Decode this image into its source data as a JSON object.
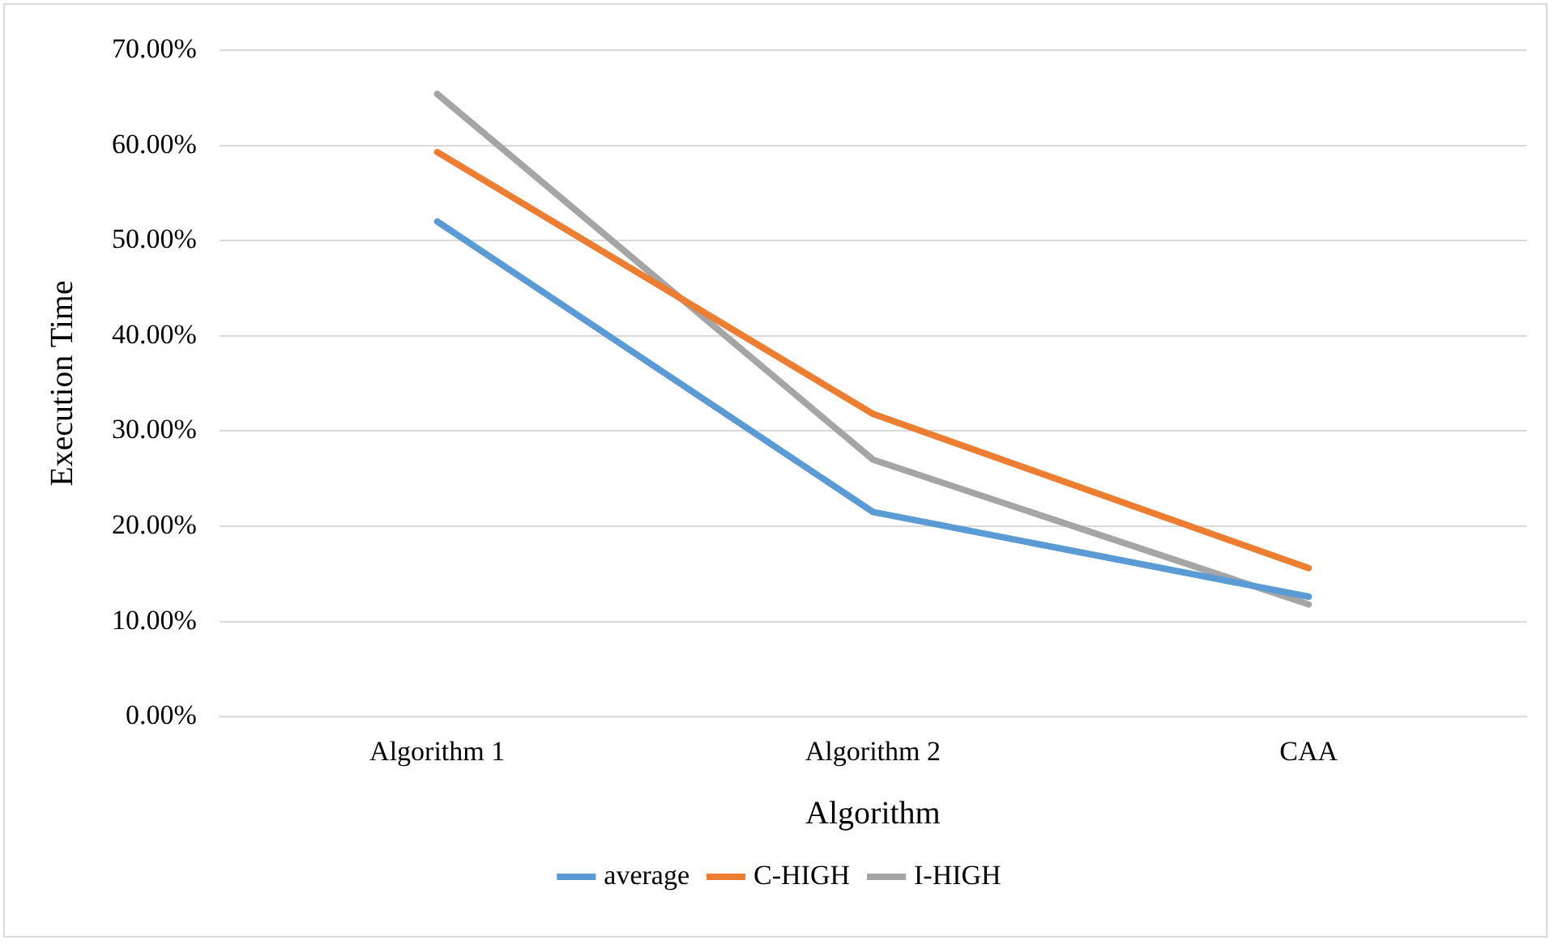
{
  "chart_data": {
    "type": "line",
    "xlabel": "Algorithm",
    "ylabel": "Execution Time",
    "categories": [
      "Algorithm 1",
      "Algorithm 2",
      "CAA"
    ],
    "series": [
      {
        "name": "average",
        "color": "#5b9bd5",
        "values": [
          52.0,
          21.5,
          12.6
        ]
      },
      {
        "name": "C-HIGH",
        "color": "#ed7d31",
        "values": [
          59.3,
          31.8,
          15.6
        ]
      },
      {
        "name": "I-HIGH",
        "color": "#a5a5a5",
        "values": [
          65.4,
          27.0,
          11.8
        ]
      }
    ],
    "ylim": [
      0,
      70
    ],
    "yticks": [
      {
        "value": 0,
        "label": "0.00%"
      },
      {
        "value": 10,
        "label": "10.00%"
      },
      {
        "value": 20,
        "label": "20.00%"
      },
      {
        "value": 30,
        "label": "30.00%"
      },
      {
        "value": 40,
        "label": "40.00%"
      },
      {
        "value": 50,
        "label": "50.00%"
      },
      {
        "value": 60,
        "label": "60.00%"
      },
      {
        "value": 70,
        "label": "70.00%"
      }
    ],
    "grid": "y",
    "legend": "bottom",
    "marker": "none",
    "line_style": "solid"
  }
}
